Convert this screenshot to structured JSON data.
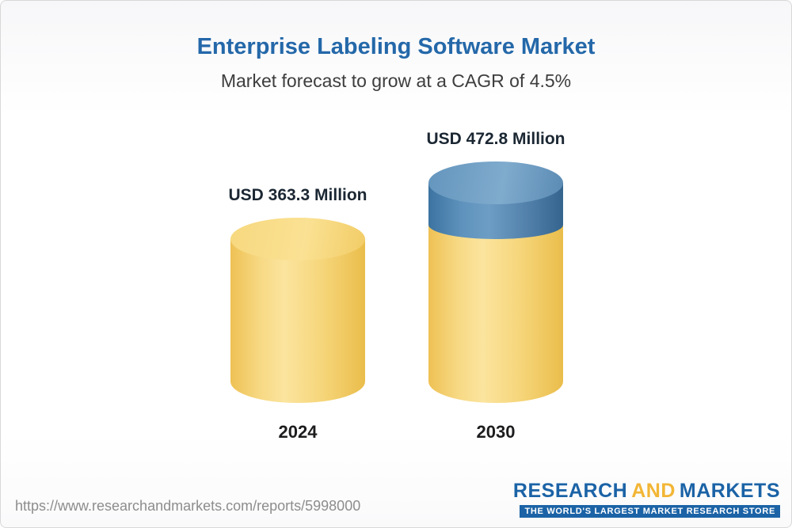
{
  "chart_data": {
    "type": "bar",
    "title": "Enterprise Labeling Software Market",
    "subtitle": "Market forecast to grow at a CAGR of 4.5%",
    "categories": [
      "2024",
      "2030"
    ],
    "values": [
      363.3,
      472.8
    ],
    "value_labels": [
      "USD 363.3 Million",
      "USD 472.8 Million"
    ],
    "unit": "USD Million",
    "cagr_percent": 4.5,
    "legend_position": "none",
    "grid": false,
    "colors": {
      "title_blue": "#2468a9",
      "bar_yellow": "#f6d67b",
      "bar_blue_segment": "#5f93bd",
      "label_dark": "#1b2733"
    }
  },
  "footer": {
    "url": "https://www.researchandmarkets.com/reports/5998000",
    "logo": {
      "part1": "RESEARCH",
      "part2": "AND",
      "part3": "MARKETS",
      "tagline": "THE WORLD'S LARGEST MARKET RESEARCH STORE"
    }
  }
}
